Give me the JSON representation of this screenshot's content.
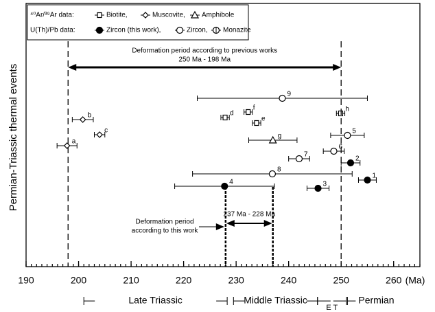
{
  "chart_data": {
    "type": "errorbar",
    "ylabel": "Permian-Triassic thermal events",
    "xlabel": "(Ma)",
    "xlim": [
      190,
      265
    ],
    "xticks": [
      190,
      200,
      210,
      220,
      230,
      240,
      250,
      260
    ],
    "minor_xticks": [
      190,
      191,
      192,
      193,
      194,
      195,
      196,
      197,
      198,
      199,
      200,
      201,
      202,
      203,
      204,
      205,
      206,
      207,
      208,
      209,
      210,
      211,
      212,
      213,
      214,
      215,
      216,
      217,
      218,
      219,
      220,
      221,
      222,
      223,
      224,
      225,
      226,
      227,
      228,
      229,
      230,
      231,
      232,
      233,
      234,
      235,
      236,
      237,
      238,
      239,
      240,
      241,
      242,
      243,
      244,
      245,
      246,
      247,
      248,
      249,
      250,
      251,
      252,
      253,
      254,
      255,
      256,
      257,
      258,
      259,
      260,
      261,
      262,
      263,
      264,
      265
    ],
    "legend_groups": [
      {
        "title": "⁴⁰Ar/³⁹Ar data:",
        "series": [
          {
            "name": "Biotite,",
            "marker": "square",
            "points": [
              {
                "label": "d",
                "x": 227.9,
                "err": 0.8
              },
              {
                "label": "e",
                "x": 233.9,
                "err": 0.8
              },
              {
                "label": "f",
                "x": 232.3,
                "err": 0.8
              },
              {
                "label": "h",
                "x": 249.9,
                "err": 0.8
              }
            ]
          },
          {
            "name": "Muscovite,",
            "marker": "diamond",
            "points": [
              {
                "label": "a",
                "x": 197.8,
                "err": 1.9
              },
              {
                "label": "b",
                "x": 200.8,
                "err": 2
              },
              {
                "label": "c",
                "x": 204,
                "err": 1
              }
            ]
          },
          {
            "name": "Amphibole",
            "marker": "triangle",
            "points": [
              {
                "label": "g",
                "x": 237,
                "err": 4.6
              }
            ]
          }
        ]
      },
      {
        "title": "U(Th)/Pb data:",
        "series": [
          {
            "name": "Zircon (this work),",
            "marker": "filled-circle",
            "points": [
              {
                "label": "1",
                "x": 255,
                "err": 1.7
              },
              {
                "label": "2",
                "x": 251.8,
                "err": 1.8
              },
              {
                "label": "3",
                "x": 245.6,
                "err": 2.1
              },
              {
                "label": "4",
                "x": 227.8,
                "err": 9.5
              }
            ]
          },
          {
            "name": "Zircon,",
            "marker": "circle",
            "points": [
              {
                "label": "5",
                "x": 251.2,
                "err": 3.2
              },
              {
                "label": "6",
                "x": 248.6,
                "err": 2
              },
              {
                "label": "7",
                "x": 242,
                "err": 2
              },
              {
                "label": "8",
                "x": 236.9,
                "err": 15.2
              },
              {
                "label": "9",
                "x": 238.8,
                "err": 16.2
              }
            ]
          },
          {
            "name": "Monazite",
            "marker": "cross-circle",
            "points": []
          }
        ]
      }
    ],
    "annotations": {
      "previous": {
        "text": [
          "Deformation period according to previous works",
          "250 Ma - 198 Ma"
        ],
        "range": [
          198,
          250
        ]
      },
      "this_work": {
        "text": [
          "237 Ma - 228 Ma",
          "Deformation period",
          "according to this work"
        ],
        "range": [
          228,
          237
        ]
      }
    },
    "timescale": [
      {
        "name": "Late Triassic",
        "range": [
          201,
          228.3
        ]
      },
      {
        "name": "Middle Triassic",
        "range": [
          229.5,
          245.5
        ]
      },
      {
        "name": "E T",
        "range": [
          245.5,
          251
        ]
      },
      {
        "name": "Permian",
        "range": [
          251.2,
          265
        ]
      }
    ]
  }
}
